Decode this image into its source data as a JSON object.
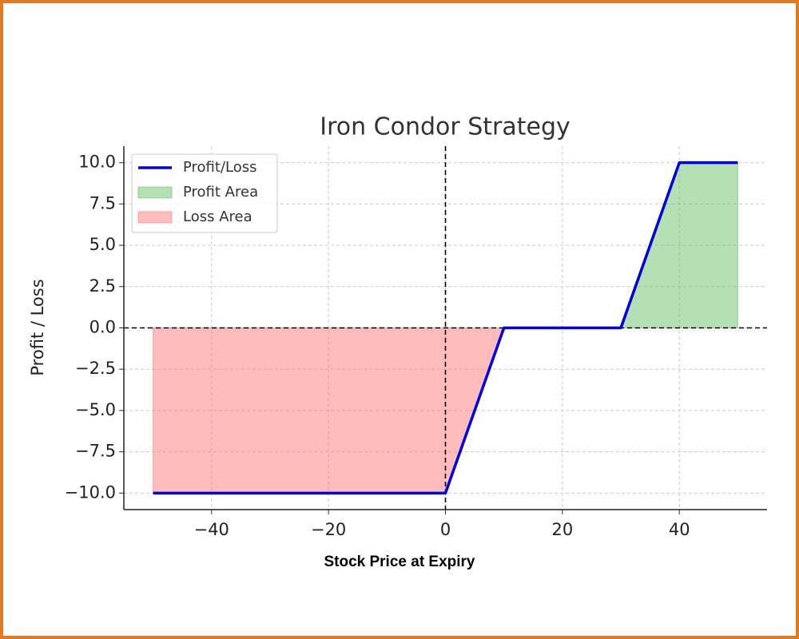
{
  "chart_data": {
    "type": "line",
    "title": "Iron Condor Strategy",
    "x_label": "Stock Price at Expiry",
    "y_label": "Profit / Loss",
    "x": [
      -50,
      0,
      10,
      30,
      40,
      50
    ],
    "series": [
      {
        "name": "Profit/Loss",
        "color": "#0000e0",
        "values": [
          -10,
          -10,
          0,
          0,
          10,
          10
        ]
      }
    ],
    "fills": [
      {
        "name": "Profit Area",
        "color": "#5cb85c",
        "where": "above"
      },
      {
        "name": "Loss Area",
        "color": "#ff6b6b",
        "where": "below"
      }
    ],
    "hline": 0,
    "vline": 0,
    "xlim": [
      -55,
      55
    ],
    "xticks": [
      {
        "value": -40,
        "label": "−40"
      },
      {
        "value": -20,
        "label": "−20"
      },
      0,
      20,
      40
    ],
    "ylim": [
      -11,
      11
    ],
    "yticks": [
      {
        "value": 10,
        "label": "10.0"
      },
      {
        "value": 7.5,
        "label": "7.5"
      },
      {
        "value": 5,
        "label": "5.0"
      },
      {
        "value": 2.5,
        "label": "2.5"
      },
      {
        "value": 0,
        "label": "0.0"
      },
      {
        "value": -2.5,
        "label": "−2.5"
      },
      {
        "value": -5,
        "label": "−5.0"
      },
      {
        "value": -7.5,
        "label": "−7.5"
      },
      {
        "value": -10,
        "label": "−10.0"
      }
    ],
    "grid": true,
    "legend": "upper left"
  }
}
